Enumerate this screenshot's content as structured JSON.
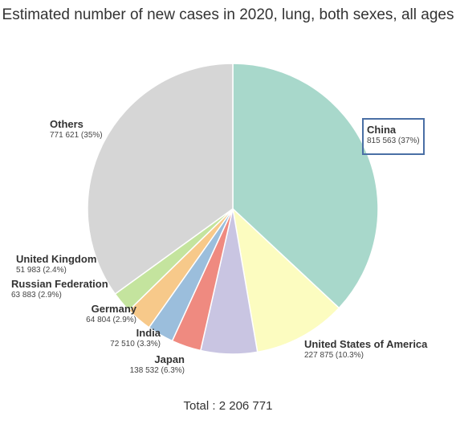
{
  "chart_data": {
    "type": "pie",
    "title": "Estimated number of new cases in 2020, lung, both sexes, all ages",
    "total_label": "Total : 2 206 771",
    "start_angle_deg": 0,
    "slices": [
      {
        "label": "China",
        "value": 815563,
        "value_label": "815 563 (37%)",
        "color": "#a8d8cb"
      },
      {
        "label": "United States of America",
        "value": 227875,
        "value_label": "227 875 (10.3%)",
        "color": "#fcfcc0"
      },
      {
        "label": "Japan",
        "value": 138532,
        "value_label": "138 532 (6.3%)",
        "color": "#c9c5e2"
      },
      {
        "label": "India",
        "value": 72510,
        "value_label": "72 510 (3.3%)",
        "color": "#ef8a80"
      },
      {
        "label": "Germany",
        "value": 64804,
        "value_label": "64 804 (2.9%)",
        "color": "#9bbedc"
      },
      {
        "label": "Russian Federation",
        "value": 63883,
        "value_label": "63 883 (2.9%)",
        "color": "#f7c98a"
      },
      {
        "label": "United Kingdom",
        "value": 51983,
        "value_label": "51 983 (2.4%)",
        "color": "#c4e49e"
      },
      {
        "label": "Others",
        "value": 771621,
        "value_label": "771 621 (35%)",
        "color": "#d6d6d6"
      }
    ]
  }
}
